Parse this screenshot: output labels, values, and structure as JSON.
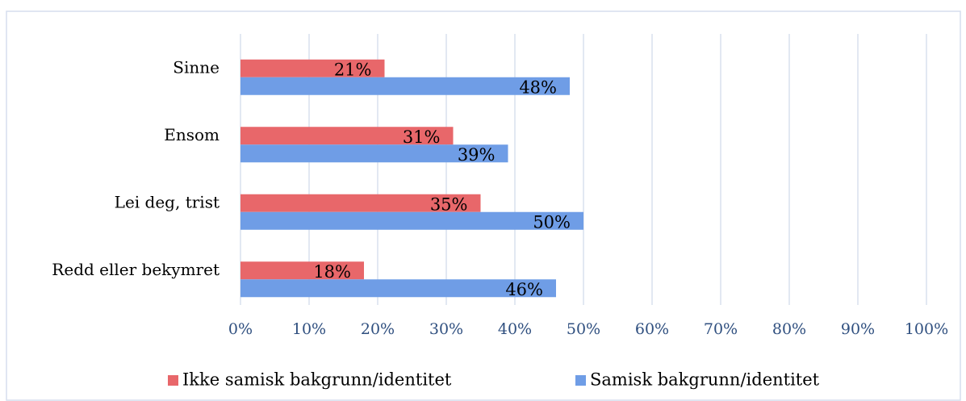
{
  "chart_data": {
    "type": "bar",
    "orientation": "horizontal",
    "categories": [
      "Sinne",
      "Ensom",
      "Lei deg, trist",
      "Redd eller bekymret"
    ],
    "series": [
      {
        "name": "Ikke samisk bakgrunn/identitet",
        "color": "#e8676a",
        "values": [
          21,
          31,
          35,
          18
        ],
        "value_labels": [
          "21%",
          "31%",
          "35%",
          "18%"
        ]
      },
      {
        "name": "Samisk bakgrunn/identitet",
        "color": "#6f9de6",
        "values": [
          48,
          39,
          50,
          46
        ],
        "value_labels": [
          "48%",
          "39%",
          "50%",
          "46%"
        ]
      }
    ],
    "xlim": [
      0,
      100
    ],
    "xticks": [
      {
        "value": 0,
        "label": "0%"
      },
      {
        "value": 10,
        "label": "10%"
      },
      {
        "value": 20,
        "label": "20%"
      },
      {
        "value": 30,
        "label": "30%"
      },
      {
        "value": 40,
        "label": "40%"
      },
      {
        "value": 50,
        "label": "50%"
      },
      {
        "value": 60,
        "label": "60%"
      },
      {
        "value": 70,
        "label": "70%"
      },
      {
        "value": 80,
        "label": "80%"
      },
      {
        "value": 90,
        "label": "90%"
      },
      {
        "value": 100,
        "label": "100%"
      }
    ],
    "grid": true,
    "legend": "bottom"
  }
}
